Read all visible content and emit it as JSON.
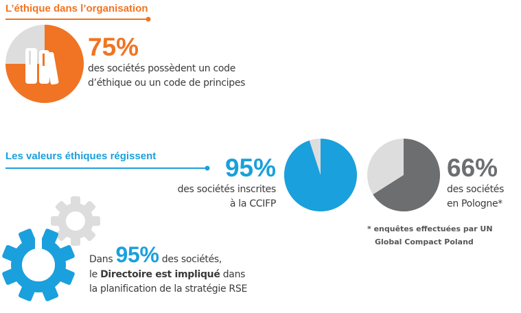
{
  "colors": {
    "orange": "#f07423",
    "blue": "#1aa0dc",
    "dark_gray": "#6d6e70",
    "light_gray": "#dddddd"
  },
  "section1": {
    "title": "L’éthique dans l’organisation",
    "value": "75%",
    "line1": "des sociétés possèdent un code",
    "line2": "d’éthique ou un code de principes",
    "icon": "books-icon",
    "fraction": 0.75
  },
  "section2": {
    "title": "Les valeurs éthiques régissent",
    "ccifp": {
      "value": "95%",
      "line1": "des sociétés inscrites",
      "line2": "à la CCIFP",
      "fraction": 0.95
    },
    "poland": {
      "value": "66%",
      "line1": "des sociétés",
      "line2": "en Pologne*",
      "fraction": 0.66
    },
    "footnote1": "* enquêtes effectuées par UN",
    "footnote2": "Global Compact Poland"
  },
  "section3": {
    "pre": "Dans",
    "value": "95%",
    "post": " des sociétés,",
    "l2a": "le ",
    "l2b": "Directoire est impliqué",
    "l2c": " dans",
    "line3": "la planification de la stratégie RSE",
    "icon": "gears-icon"
  }
}
